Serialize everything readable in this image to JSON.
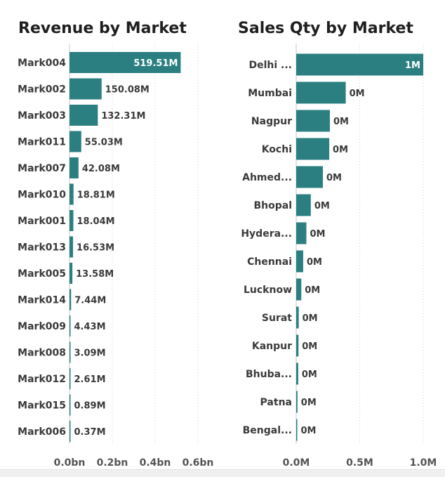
{
  "chart_data": [
    {
      "type": "bar",
      "orientation": "horizontal",
      "title": "Revenue by Market",
      "categories": [
        "Mark004",
        "Mark002",
        "Mark003",
        "Mark011",
        "Mark007",
        "Mark010",
        "Mark001",
        "Mark013",
        "Mark005",
        "Mark014",
        "Mark009",
        "Mark008",
        "Mark012",
        "Mark015",
        "Mark006"
      ],
      "values": [
        519.51,
        150.08,
        132.31,
        55.03,
        42.08,
        18.81,
        18.04,
        16.53,
        13.58,
        7.44,
        4.43,
        3.09,
        2.61,
        0.89,
        0.37
      ],
      "value_unit": "M",
      "data_labels": [
        "519.51M",
        "150.08M",
        "132.31M",
        "55.03M",
        "42.08M",
        "18.81M",
        "18.04M",
        "16.53M",
        "13.58M",
        "7.44M",
        "4.43M",
        "3.09M",
        "2.61M",
        "0.89M",
        "0.37M"
      ],
      "xlim": [
        0,
        600
      ],
      "x_ticks": [
        0,
        200,
        400,
        600
      ],
      "x_tick_labels": [
        "0.0bn",
        "0.2bn",
        "0.4bn",
        "0.6bn"
      ],
      "grid": true,
      "color": "#2b7f80"
    },
    {
      "type": "bar",
      "orientation": "horizontal",
      "title": "Sales Qty by Market",
      "categories": [
        "Delhi ...",
        "Mumbai",
        "Nagpur",
        "Kochi",
        "Ahmed...",
        "Bhopal",
        "Hydera...",
        "Chennai",
        "Lucknow",
        "Surat",
        "Kanpur",
        "Bhuba...",
        "Patna",
        "Bengal..."
      ],
      "values": [
        1.0,
        0.39,
        0.265,
        0.26,
        0.21,
        0.115,
        0.08,
        0.055,
        0.04,
        0.02,
        0.018,
        0.016,
        0.01,
        0.008
      ],
      "value_unit": "M",
      "data_labels": [
        "1M",
        "0M",
        "0M",
        "0M",
        "0M",
        "0M",
        "0M",
        "0M",
        "0M",
        "0M",
        "0M",
        "0M",
        "0M",
        "0M"
      ],
      "xlim": [
        0,
        1.0
      ],
      "x_ticks": [
        0,
        0.5,
        1.0
      ],
      "x_tick_labels": [
        "0.0M",
        "0.5M",
        "1.0M"
      ],
      "grid": true,
      "color": "#2b7f80"
    }
  ]
}
